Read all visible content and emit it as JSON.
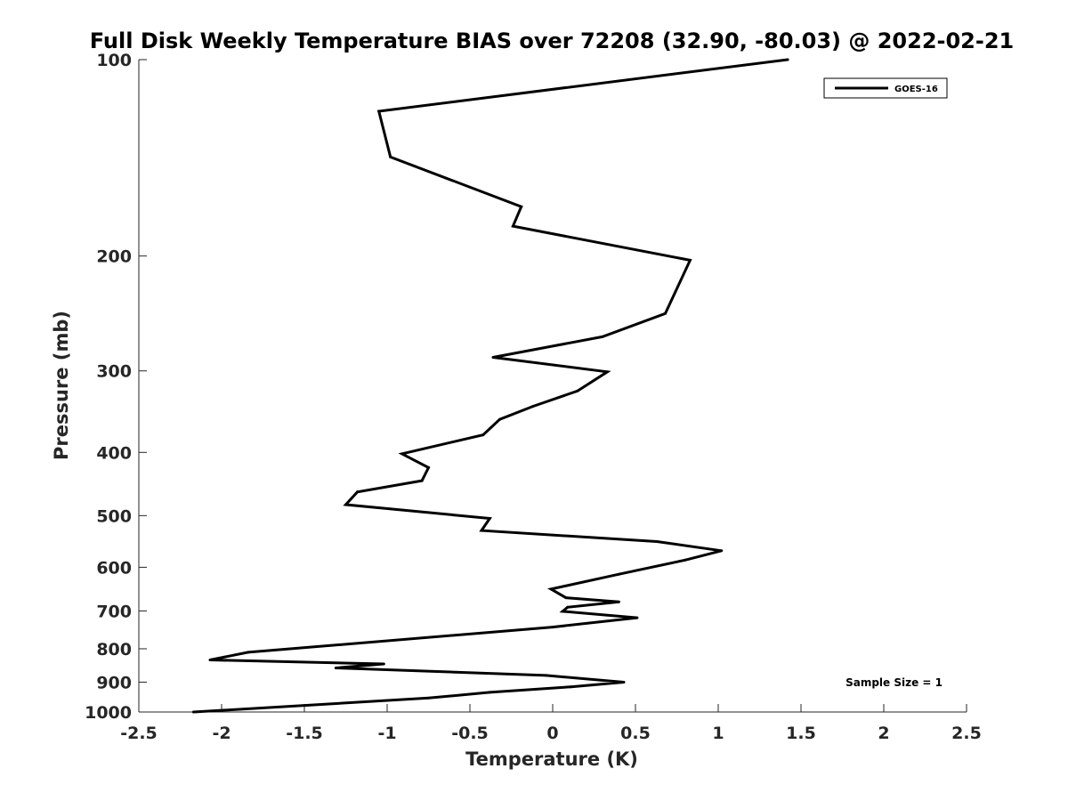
{
  "chart_data": {
    "type": "line",
    "title": "Full Disk Weekly Temperature BIAS over 72208 (32.90, -80.03) @ 2022-02-21",
    "xlabel": "Temperature (K)",
    "ylabel": "Pressure (mb)",
    "xlim": [
      -2.5,
      2.5
    ],
    "ylim": [
      100,
      1000
    ],
    "y_scale": "log",
    "y_reversed": true,
    "grid": false,
    "legend_position": "top-right",
    "x_ticks": [
      "-2.5",
      "-2",
      "-1.5",
      "-1",
      "-0.5",
      "0",
      "0.5",
      "1",
      "1.5",
      "2",
      "2.5"
    ],
    "y_ticks": [
      "100",
      "200",
      "300",
      "400",
      "500",
      "600",
      "700",
      "800",
      "900",
      "1000"
    ],
    "annotation": "Sample Size = 1",
    "series": [
      {
        "name": "GOES-16",
        "color": "#000000",
        "points": [
          {
            "x": 1.42,
            "y": 100
          },
          {
            "x": -1.05,
            "y": 120
          },
          {
            "x": -0.98,
            "y": 141
          },
          {
            "x": -0.19,
            "y": 168
          },
          {
            "x": -0.24,
            "y": 180
          },
          {
            "x": 0.83,
            "y": 203
          },
          {
            "x": 0.68,
            "y": 245
          },
          {
            "x": 0.3,
            "y": 266
          },
          {
            "x": -0.36,
            "y": 286
          },
          {
            "x": 0.33,
            "y": 301
          },
          {
            "x": 0.15,
            "y": 322
          },
          {
            "x": -0.12,
            "y": 340
          },
          {
            "x": -0.32,
            "y": 356
          },
          {
            "x": -0.42,
            "y": 376
          },
          {
            "x": -0.91,
            "y": 402
          },
          {
            "x": -0.75,
            "y": 422
          },
          {
            "x": -0.79,
            "y": 442
          },
          {
            "x": -1.18,
            "y": 460
          },
          {
            "x": -1.25,
            "y": 481
          },
          {
            "x": -0.38,
            "y": 505
          },
          {
            "x": -0.43,
            "y": 527
          },
          {
            "x": 0.63,
            "y": 548
          },
          {
            "x": 1.02,
            "y": 566
          },
          {
            "x": 0.8,
            "y": 585
          },
          {
            "x": 0.4,
            "y": 615
          },
          {
            "x": -0.01,
            "y": 648
          },
          {
            "x": 0.08,
            "y": 668
          },
          {
            "x": 0.4,
            "y": 678
          },
          {
            "x": 0.09,
            "y": 691
          },
          {
            "x": 0.06,
            "y": 701
          },
          {
            "x": 0.51,
            "y": 717
          },
          {
            "x": 0.0,
            "y": 741
          },
          {
            "x": -1.84,
            "y": 810
          },
          {
            "x": -2.07,
            "y": 832
          },
          {
            "x": -1.02,
            "y": 844
          },
          {
            "x": -1.31,
            "y": 856
          },
          {
            "x": -0.04,
            "y": 879
          },
          {
            "x": 0.43,
            "y": 900
          },
          {
            "x": 0.11,
            "y": 915
          },
          {
            "x": -0.38,
            "y": 933
          },
          {
            "x": -0.75,
            "y": 952
          },
          {
            "x": -2.17,
            "y": 1000
          }
        ]
      }
    ]
  }
}
